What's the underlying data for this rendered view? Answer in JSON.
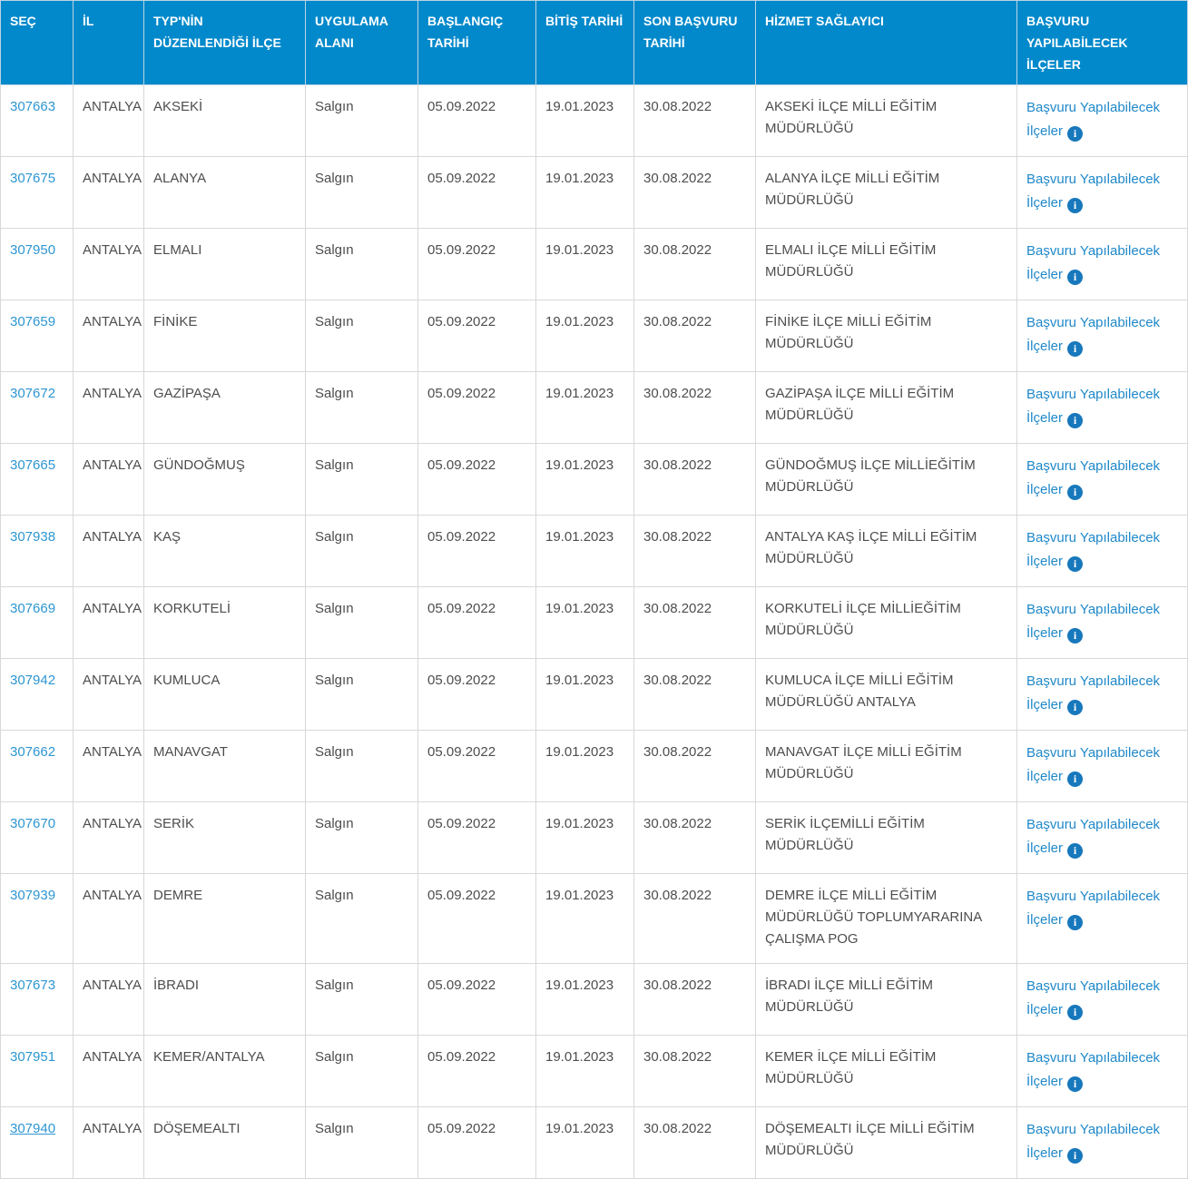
{
  "table": {
    "columns": [
      {
        "key": "id",
        "label": "SEÇ"
      },
      {
        "key": "il",
        "label": "İL"
      },
      {
        "key": "ilce",
        "label": "TYP'NİN DÜZENLENDİĞİ İLÇE"
      },
      {
        "key": "alan",
        "label": "UYGULAMA ALANI"
      },
      {
        "key": "baslangic",
        "label": "BAŞLANGIÇ TARİHİ"
      },
      {
        "key": "bitis",
        "label": "BİTİŞ TARİHİ"
      },
      {
        "key": "son",
        "label": "SON BAŞVURU TARİHİ"
      },
      {
        "key": "saglayici",
        "label": "HİZMET SAĞLAYICI"
      },
      {
        "key": "link",
        "label": "BAŞVURU YAPILABİLECEK İLÇELER"
      }
    ],
    "link_label": "Başvuru Yapılabilecek İlçeler",
    "info_icon_glyph": "i",
    "rows": [
      {
        "id": "307663",
        "il": "ANTALYA",
        "ilce": "AKSEKİ",
        "alan": "Salgın",
        "baslangic": "05.09.2022",
        "bitis": "19.01.2023",
        "son": "30.08.2022",
        "saglayici": "AKSEKİ İLÇE MİLLİ EĞİTİM MÜDÜRLÜĞÜ",
        "underline": false
      },
      {
        "id": "307675",
        "il": "ANTALYA",
        "ilce": "ALANYA",
        "alan": "Salgın",
        "baslangic": "05.09.2022",
        "bitis": "19.01.2023",
        "son": "30.08.2022",
        "saglayici": "ALANYA İLÇE MİLLİ EĞİTİM MÜDÜRLÜĞÜ",
        "underline": false
      },
      {
        "id": "307950",
        "il": "ANTALYA",
        "ilce": "ELMALI",
        "alan": "Salgın",
        "baslangic": "05.09.2022",
        "bitis": "19.01.2023",
        "son": "30.08.2022",
        "saglayici": "ELMALI İLÇE MİLLİ EĞİTİM MÜDÜRLÜĞÜ",
        "underline": false
      },
      {
        "id": "307659",
        "il": "ANTALYA",
        "ilce": "FİNİKE",
        "alan": "Salgın",
        "baslangic": "05.09.2022",
        "bitis": "19.01.2023",
        "son": "30.08.2022",
        "saglayici": "FİNİKE İLÇE MİLLİ EĞİTİM MÜDÜRLÜĞÜ",
        "underline": false
      },
      {
        "id": "307672",
        "il": "ANTALYA",
        "ilce": "GAZİPAŞA",
        "alan": "Salgın",
        "baslangic": "05.09.2022",
        "bitis": "19.01.2023",
        "son": "30.08.2022",
        "saglayici": "GAZİPAŞA İLÇE MİLLİ EĞİTİM MÜDÜRLÜĞÜ",
        "underline": false
      },
      {
        "id": "307665",
        "il": "ANTALYA",
        "ilce": "GÜNDOĞMUŞ",
        "alan": "Salgın",
        "baslangic": "05.09.2022",
        "bitis": "19.01.2023",
        "son": "30.08.2022",
        "saglayici": "GÜNDOĞMUŞ İLÇE MİLLİEĞİTİM MÜDÜRLÜĞÜ",
        "underline": false
      },
      {
        "id": "307938",
        "il": "ANTALYA",
        "ilce": "KAŞ",
        "alan": "Salgın",
        "baslangic": "05.09.2022",
        "bitis": "19.01.2023",
        "son": "30.08.2022",
        "saglayici": "ANTALYA KAŞ İLÇE MİLLİ EĞİTİM MÜDÜRLÜĞÜ",
        "underline": false
      },
      {
        "id": "307669",
        "il": "ANTALYA",
        "ilce": "KORKUTELİ",
        "alan": "Salgın",
        "baslangic": "05.09.2022",
        "bitis": "19.01.2023",
        "son": "30.08.2022",
        "saglayici": "KORKUTELİ İLÇE MİLLİEĞİTİM MÜDÜRLÜĞÜ",
        "underline": false
      },
      {
        "id": "307942",
        "il": "ANTALYA",
        "ilce": "KUMLUCA",
        "alan": "Salgın",
        "baslangic": "05.09.2022",
        "bitis": "19.01.2023",
        "son": "30.08.2022",
        "saglayici": "KUMLUCA İLÇE MİLLİ EĞİTİM MÜDÜRLÜĞÜ ANTALYA",
        "underline": false
      },
      {
        "id": "307662",
        "il": "ANTALYA",
        "ilce": "MANAVGAT",
        "alan": "Salgın",
        "baslangic": "05.09.2022",
        "bitis": "19.01.2023",
        "son": "30.08.2022",
        "saglayici": "MANAVGAT İLÇE MİLLİ EĞİTİM MÜDÜRLÜĞÜ",
        "underline": false
      },
      {
        "id": "307670",
        "il": "ANTALYA",
        "ilce": "SERİK",
        "alan": "Salgın",
        "baslangic": "05.09.2022",
        "bitis": "19.01.2023",
        "son": "30.08.2022",
        "saglayici": "SERİK İLÇEMİLLİ EĞİTİM MÜDÜRLÜĞÜ",
        "underline": false
      },
      {
        "id": "307939",
        "il": "ANTALYA",
        "ilce": "DEMRE",
        "alan": "Salgın",
        "baslangic": "05.09.2022",
        "bitis": "19.01.2023",
        "son": "30.08.2022",
        "saglayici": "DEMRE İLÇE MİLLİ EĞİTİM MÜDÜRLÜĞÜ TOPLUMYARARINA ÇALIŞMA POG",
        "underline": false
      },
      {
        "id": "307673",
        "il": "ANTALYA",
        "ilce": "İBRADI",
        "alan": "Salgın",
        "baslangic": "05.09.2022",
        "bitis": "19.01.2023",
        "son": "30.08.2022",
        "saglayici": "İBRADI İLÇE MİLLİ EĞİTİM MÜDÜRLÜĞÜ",
        "underline": false
      },
      {
        "id": "307951",
        "il": "ANTALYA",
        "ilce": "KEMER/ANTALYA",
        "alan": "Salgın",
        "baslangic": "05.09.2022",
        "bitis": "19.01.2023",
        "son": "30.08.2022",
        "saglayici": "KEMER İLÇE MİLLİ EĞİTİM MÜDÜRLÜĞÜ",
        "underline": false
      },
      {
        "id": "307940",
        "il": "ANTALYA",
        "ilce": "DÖŞEMEALTI",
        "alan": "Salgın",
        "baslangic": "05.09.2022",
        "bitis": "19.01.2023",
        "son": "30.08.2022",
        "saglayici": "DÖŞEMEALTI İLÇE MİLLİ EĞİTİM MÜDÜRLÜĞÜ",
        "underline": true
      }
    ]
  },
  "colors": {
    "header_bg": "#0289cb",
    "header_text": "#ffffff",
    "id_link": "#2d96d2",
    "districts_link": "#1f88c9",
    "info_icon_bg": "#1878bc",
    "body_text": "#4d4d4d",
    "cell_border": "#d8d8d8"
  }
}
